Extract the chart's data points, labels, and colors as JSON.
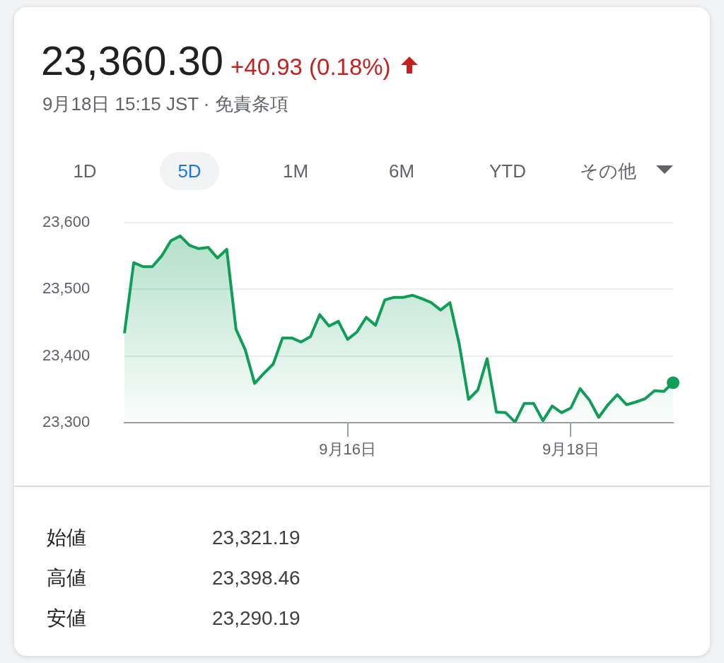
{
  "chart_data": {
    "type": "area",
    "title": "23,360.30",
    "subtitle": "9月18日 15:15 JST · 免責条項",
    "annotations": [
      "+40.93 (0.18%)",
      "1D",
      "5D",
      "1M",
      "6M",
      "YTD",
      "その他",
      "始値",
      "23,321.19",
      "高値",
      "23,398.46",
      "安値",
      "23,290.19"
    ],
    "categories": [
      null,
      null,
      null,
      null,
      null,
      null,
      null,
      null,
      null,
      null,
      null,
      null,
      null,
      null,
      null,
      null,
      null,
      null,
      null,
      null,
      null,
      null,
      null,
      null,
      "9月16日",
      null,
      null,
      null,
      null,
      null,
      null,
      null,
      null,
      null,
      null,
      null,
      null,
      null,
      null,
      null,
      null,
      null,
      null,
      null,
      null,
      null,
      null,
      null,
      "9月18日",
      null,
      null,
      null,
      null,
      null,
      null,
      null,
      null,
      null,
      null,
      null
    ],
    "series": [
      {
        "color": "#109d58",
        "values": [
          23434,
          23540,
          23534,
          23534,
          23550,
          23573,
          23580,
          23566,
          23561,
          23563,
          23547,
          23560,
          23440,
          23409,
          23359,
          23374,
          23388,
          23427,
          23427,
          23421,
          23429,
          23462,
          23445,
          23452,
          23425,
          23436,
          23458,
          23446,
          23484,
          23488,
          23488,
          23491,
          23486,
          23480,
          23469,
          23480,
          23418,
          23335,
          23349,
          23396,
          23316,
          23315,
          23301,
          23329,
          23329,
          23303,
          23325,
          23315,
          23322,
          23351,
          23334,
          23308,
          23327,
          23342,
          23327,
          23331,
          23336,
          23348,
          23347,
          23360
        ]
      }
    ],
    "ylim": [
      23300,
      23600
    ],
    "yticks": [
      {
        "value": 23300,
        "label": "23,300"
      },
      {
        "value": 23400,
        "label": "23,400"
      },
      {
        "value": 23500,
        "label": "23,500"
      },
      {
        "value": 23600,
        "label": "23,600"
      }
    ],
    "grid": "y",
    "legend": false
  }
}
